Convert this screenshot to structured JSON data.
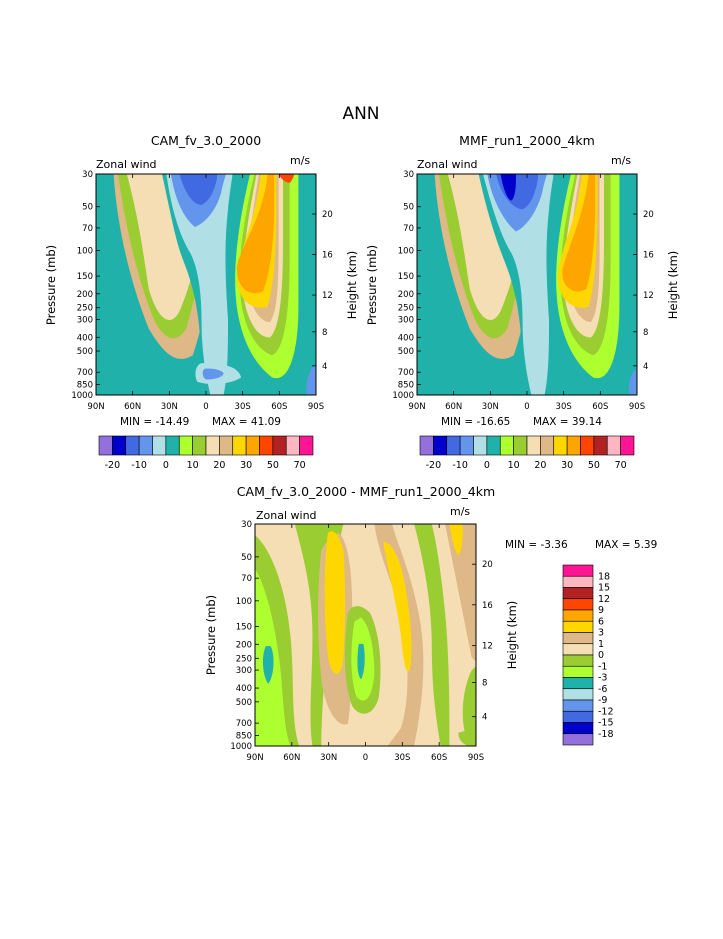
{
  "page": {
    "title": "ANN"
  },
  "colors": {
    "levels": [
      "#9370DB",
      "#0000CD",
      "#4169E1",
      "#6495ED",
      "#B0E0E6",
      "#20B2AA",
      "#ADFF2F",
      "#9ACD32",
      "#F5DEB3",
      "#DEB887",
      "#FFD700",
      "#FFA500",
      "#FF4500",
      "#B22222",
      "#FFB6C1",
      "#FF1493"
    ],
    "diff_levels": [
      "#9370DB",
      "#0000CD",
      "#4169E1",
      "#6495ED",
      "#B0E0E6",
      "#20B2AA",
      "#ADFF2F",
      "#9ACD32",
      "#F5DEB3",
      "#DEB887",
      "#FFD700",
      "#FFA500",
      "#FF4500",
      "#B22222",
      "#FFB6C1",
      "#FF1493"
    ]
  },
  "chart_data": [
    {
      "type": "contour",
      "title": "CAM_fv_3.0_2000",
      "variable_label": "Zonal wind",
      "units_label": "m/s",
      "xlabel": "",
      "ylabel": "Pressure (mb)",
      "y2label": "Height (km)",
      "x_ticks": [
        "90N",
        "60N",
        "30N",
        "0",
        "30S",
        "60S",
        "90S"
      ],
      "y_ticks": [
        "30",
        "50",
        "70",
        "100",
        "150",
        "200",
        "250",
        "300",
        "400",
        "500",
        "700",
        "850",
        "1000"
      ],
      "y2_ticks": [
        "20",
        "16",
        "12",
        "8",
        "4"
      ],
      "min_label": "MIN = -14.49",
      "max_label": "MAX =  41.09",
      "min": -14.49,
      "max": 41.09,
      "colorbar_levels": [
        -25,
        -20,
        -15,
        -10,
        -5,
        0,
        5,
        10,
        15,
        20,
        25,
        30,
        40,
        50,
        60,
        70
      ],
      "colorbar_labels": [
        "-20",
        "-10",
        "0",
        "10",
        "20",
        "30",
        "50",
        "70"
      ]
    },
    {
      "type": "contour",
      "title": "MMF_run1_2000_4km",
      "variable_label": "Zonal wind",
      "units_label": "m/s",
      "xlabel": "",
      "ylabel": "Pressure (mb)",
      "y2label": "Height (km)",
      "x_ticks": [
        "90N",
        "60N",
        "30N",
        "0",
        "30S",
        "60S",
        "90S"
      ],
      "y_ticks": [
        "30",
        "50",
        "70",
        "100",
        "150",
        "200",
        "250",
        "300",
        "400",
        "500",
        "700",
        "850",
        "1000"
      ],
      "y2_ticks": [
        "20",
        "16",
        "12",
        "8",
        "4"
      ],
      "min_label": "MIN = -16.65",
      "max_label": "MAX =  39.14",
      "min": -16.65,
      "max": 39.14,
      "colorbar_levels": [
        -25,
        -20,
        -15,
        -10,
        -5,
        0,
        5,
        10,
        15,
        20,
        25,
        30,
        40,
        50,
        60,
        70
      ],
      "colorbar_labels": [
        "-20",
        "-10",
        "0",
        "10",
        "20",
        "30",
        "50",
        "70"
      ]
    },
    {
      "type": "contour",
      "title": "CAM_fv_3.0_2000 - MMF_run1_2000_4km",
      "variable_label": "Zonal wind",
      "units_label": "m/s",
      "xlabel": "",
      "ylabel": "Pressure (mb)",
      "y2label": "Height (km)",
      "x_ticks": [
        "90N",
        "60N",
        "30N",
        "0",
        "30S",
        "60S",
        "90S"
      ],
      "y_ticks": [
        "30",
        "50",
        "70",
        "100",
        "150",
        "200",
        "250",
        "300",
        "400",
        "500",
        "700",
        "850",
        "1000"
      ],
      "y2_ticks": [
        "20",
        "16",
        "12",
        "8",
        "4"
      ],
      "min_label": "MIN =  -3.36",
      "max_label": "MAX =   5.39",
      "min": -3.36,
      "max": 5.39,
      "colorbar_levels": [
        -18,
        -15,
        -12,
        -9,
        -6,
        -3,
        -1,
        0,
        1,
        3,
        6,
        9,
        12,
        15,
        18
      ],
      "colorbar_labels": [
        "18",
        "15",
        "12",
        "9",
        "6",
        "3",
        "1",
        "0",
        "-1",
        "-3",
        "-6",
        "-9",
        "-12",
        "-15",
        "-18"
      ]
    }
  ]
}
